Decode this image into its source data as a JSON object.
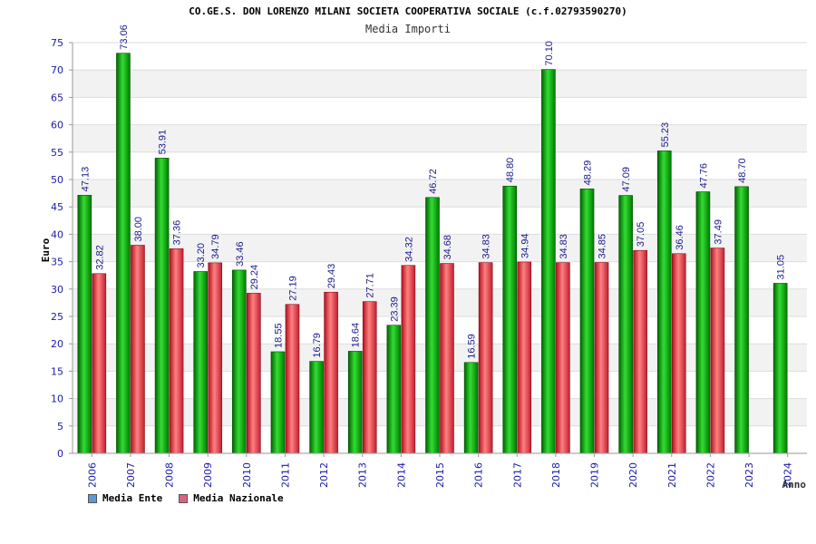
{
  "chart_data": {
    "type": "bar",
    "title": "CO.GE.S. DON LORENZO MILANI SOCIETA COOPERATIVA SOCIALE (c.f.02793590270)",
    "subtitle": "Media Importi",
    "xlabel": "Anno",
    "ylabel": "Euro",
    "ylim": [
      0,
      75
    ],
    "yticks": [
      0,
      5,
      10,
      15,
      20,
      25,
      30,
      35,
      40,
      45,
      50,
      55,
      60,
      65,
      70,
      75
    ],
    "grid": "horizontal bands",
    "legend_position": "bottom-left",
    "categories": [
      "2006",
      "2007",
      "2008",
      "2009",
      "2010",
      "2011",
      "2012",
      "2013",
      "2014",
      "2015",
      "2016",
      "2017",
      "2018",
      "2019",
      "2020",
      "2021",
      "2022",
      "2023",
      "2024"
    ],
    "series": [
      {
        "name": "Media Ente",
        "color": "#00b000",
        "legend_color": "#5b9bd5",
        "values": [
          47.13,
          73.06,
          53.91,
          33.2,
          33.46,
          18.55,
          16.79,
          18.64,
          23.39,
          46.72,
          16.59,
          48.8,
          70.1,
          48.29,
          47.09,
          55.23,
          47.76,
          48.7,
          31.05
        ],
        "labels": [
          "47.13",
          "73.06",
          "53.91",
          "33.20",
          "33.46",
          "18.55",
          "16.79",
          "18.64",
          "23.39",
          "46.72",
          "16.59",
          "48.80",
          "70.10",
          "48.29",
          "47.09",
          "55.23",
          "47.76",
          "48.70",
          "31.05"
        ]
      },
      {
        "name": "Media Nazionale",
        "color": "#e03040",
        "legend_color": "#e06080",
        "values": [
          32.82,
          38.0,
          37.36,
          34.79,
          29.24,
          27.19,
          29.43,
          27.71,
          34.32,
          34.68,
          34.83,
          34.94,
          34.83,
          34.85,
          37.05,
          36.46,
          37.49,
          null,
          null
        ],
        "labels": [
          "32.82",
          "38.00",
          "37.36",
          "34.79",
          "29.24",
          "27.19",
          "29.43",
          "27.71",
          "34.32",
          "34.68",
          "34.83",
          "34.94",
          "34.83",
          "34.85",
          "37.05",
          "36.46",
          "37.49",
          "",
          ""
        ]
      }
    ]
  }
}
